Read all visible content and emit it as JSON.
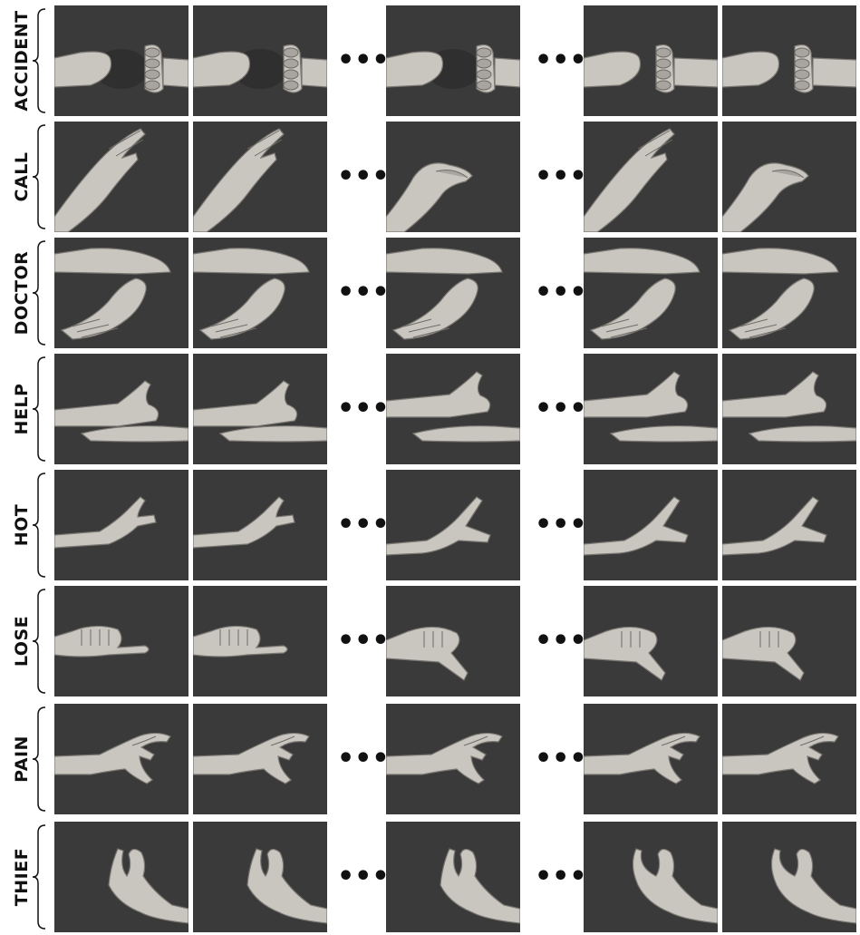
{
  "signs": [
    {
      "label": "ACCIDENT",
      "pose": "fists"
    },
    {
      "label": "CALL",
      "pose": "flat"
    },
    {
      "label": "DOCTOR",
      "pose": "palm-wrist"
    },
    {
      "label": "HELP",
      "pose": "thumb-up-on-palm"
    },
    {
      "label": "HOT",
      "pose": "spread"
    },
    {
      "label": "LOSE",
      "pose": "thumb-side"
    },
    {
      "label": "PAIN",
      "pose": "claw"
    },
    {
      "label": "THIEF",
      "pose": "hook"
    }
  ],
  "ellipsis": "•••",
  "colors": {
    "background": "#3a3a3a",
    "skin": "#c9c6c0",
    "page": "#ffffff"
  }
}
